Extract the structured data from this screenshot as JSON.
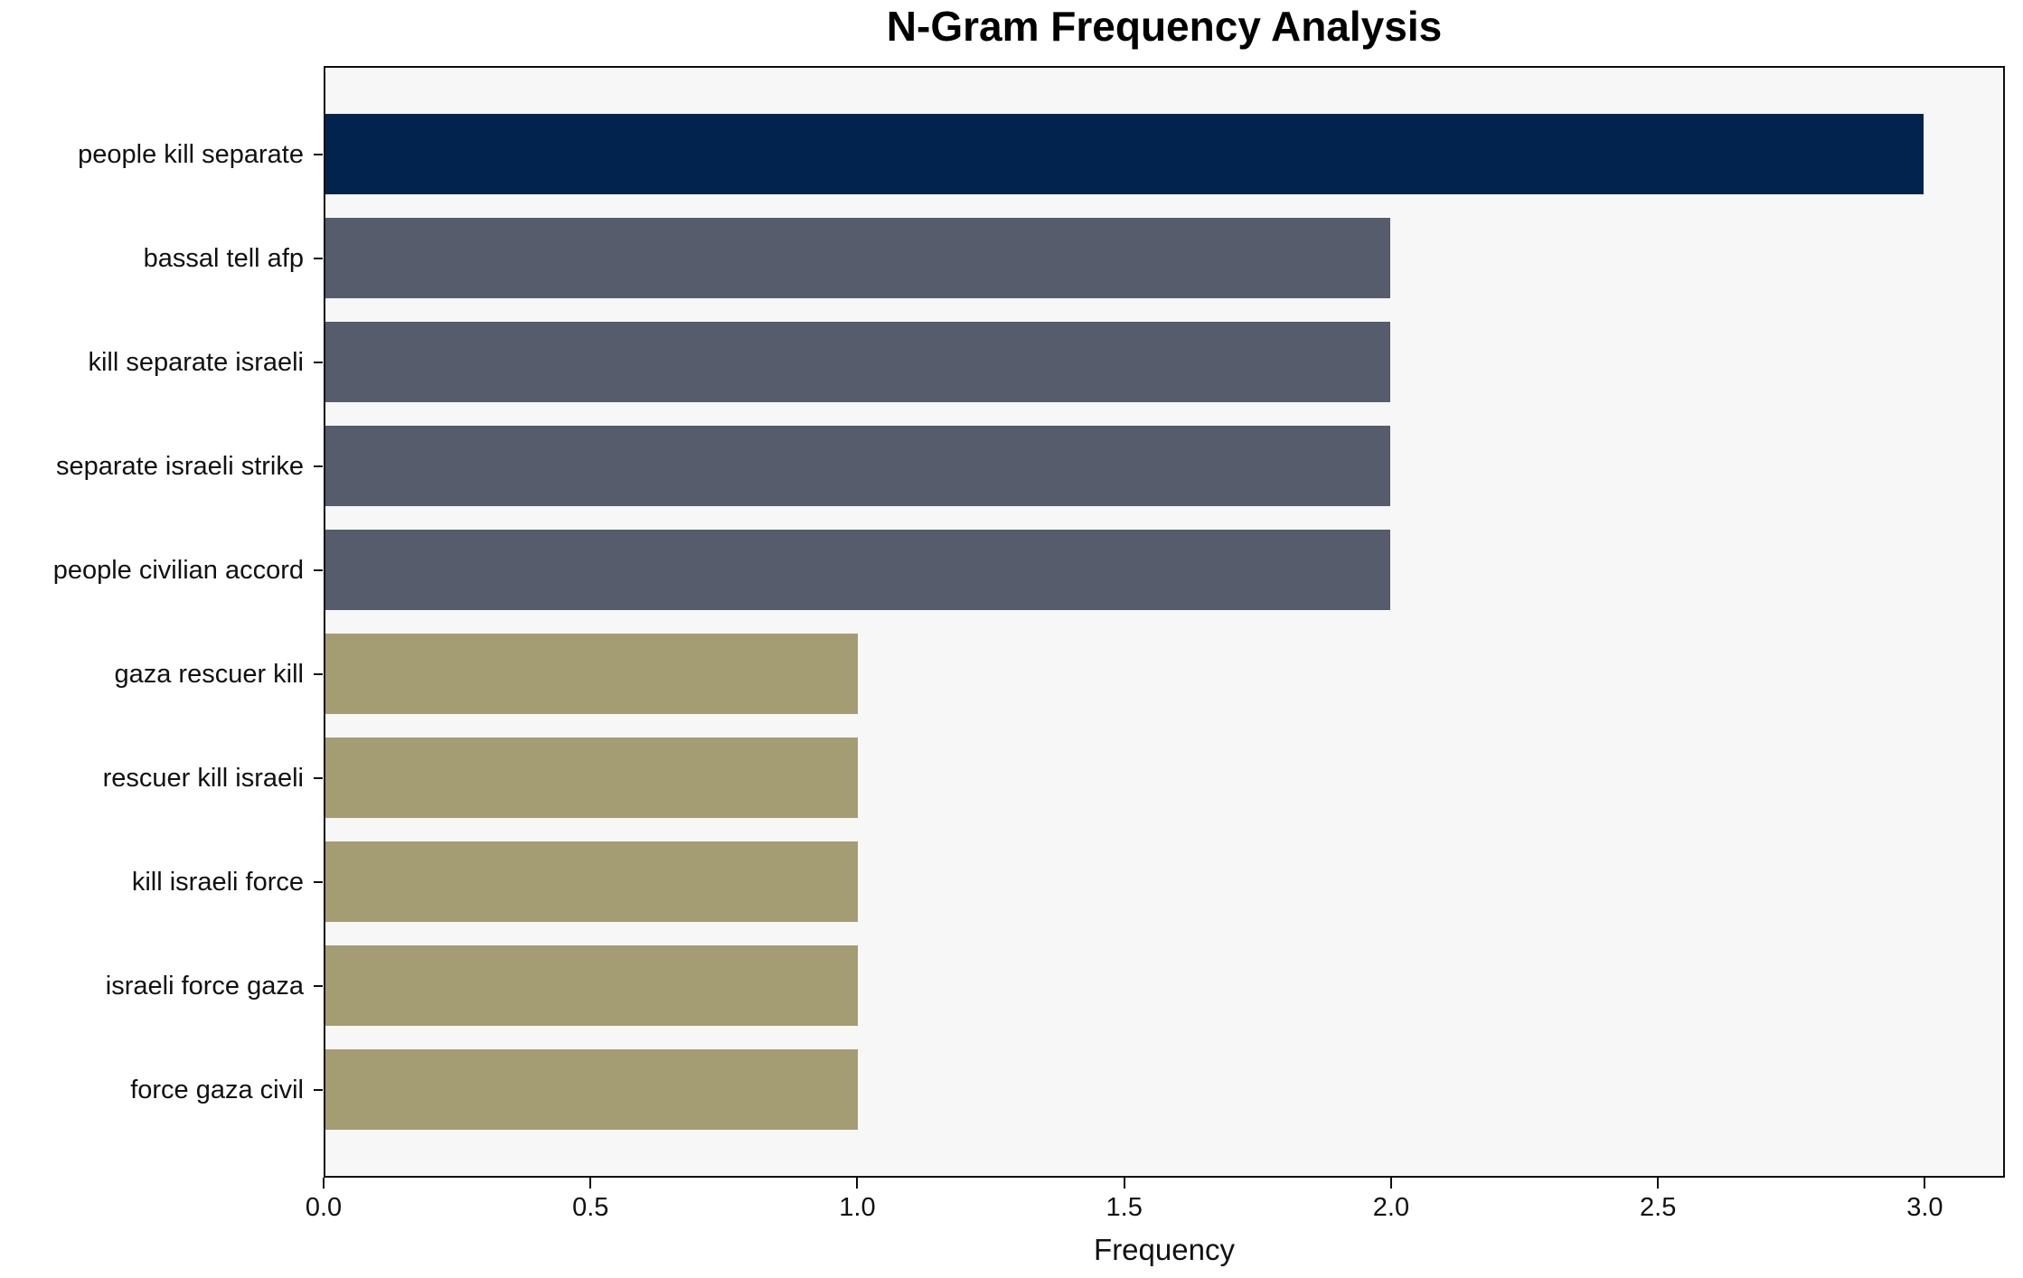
{
  "chart_data": {
    "type": "bar",
    "orientation": "horizontal",
    "title": "N-Gram Frequency Analysis",
    "xlabel": "Frequency",
    "ylabel": "",
    "categories": [
      "people kill separate",
      "bassal tell afp",
      "kill separate israeli",
      "separate israeli strike",
      "people civilian accord",
      "gaza rescuer kill",
      "rescuer kill israeli",
      "kill israeli force",
      "israeli force gaza",
      "force gaza civil"
    ],
    "values": [
      3,
      2,
      2,
      2,
      2,
      1,
      1,
      1,
      1,
      1
    ],
    "bar_colors": [
      "#02234D",
      "#565C6B",
      "#565C6B",
      "#565C6B",
      "#565C6B",
      "#A49C72",
      "#A49C72",
      "#A49C72",
      "#A49C72",
      "#A49C72"
    ],
    "xlim": [
      0,
      3.15
    ],
    "xticks": [
      0,
      0.5,
      1.0,
      1.5,
      2.0,
      2.5,
      3.0
    ],
    "xtick_labels": [
      "0.0",
      "0.5",
      "1.0",
      "1.5",
      "2.0",
      "2.5",
      "3.0"
    ],
    "grid": false,
    "legend_position": "none",
    "plot_background": "#F7F7F8",
    "figure_background": "#FFFFFF",
    "axis_color": "#0E0E0E"
  }
}
